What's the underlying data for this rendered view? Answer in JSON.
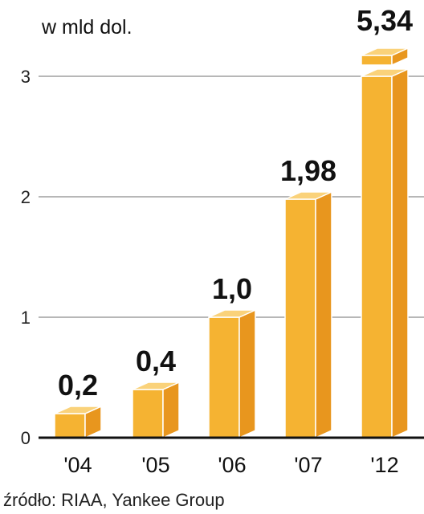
{
  "chart_data": {
    "type": "bar",
    "unit_label": "w mld dol.",
    "categories": [
      "'04",
      "'05",
      "'06",
      "'07",
      "'12"
    ],
    "values": [
      0.2,
      0.4,
      1.0,
      1.98,
      5.34
    ],
    "value_labels": [
      "0,2",
      "0,4",
      "1,0",
      "1,98",
      "5,34"
    ],
    "yticks": [
      0,
      1,
      2,
      3
    ],
    "ylim": [
      0,
      3
    ],
    "axis_break_on_last_bar": true,
    "grid": true,
    "source": "źródło: RIAA, Yankee Group",
    "colors": {
      "front": "#F5B332",
      "side": "#E8961E",
      "top": "#FAD27A",
      "edge": "#FFFFFF",
      "grid": "#8C8C8C",
      "axis": "#111111"
    }
  }
}
